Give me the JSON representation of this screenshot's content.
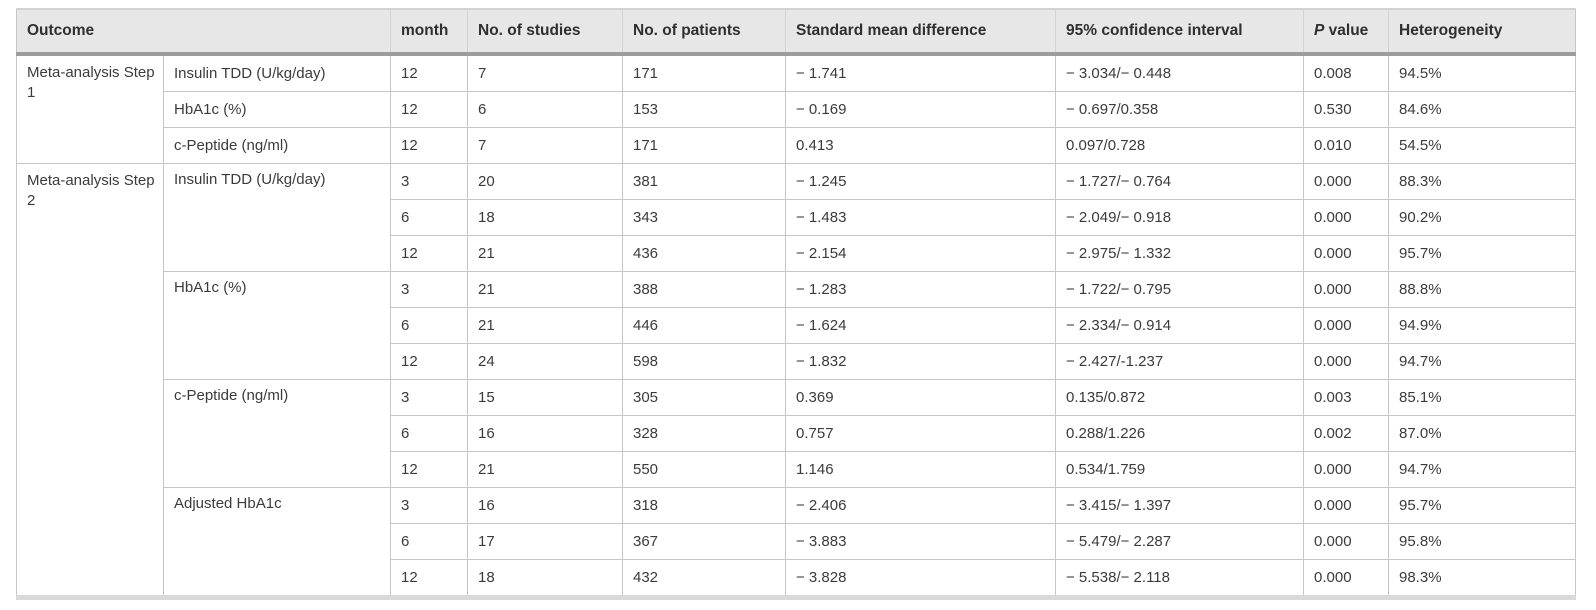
{
  "table": {
    "header": {
      "outcome": "Outcome",
      "month": "month",
      "studies": "No. of studies",
      "patients": "No. of patients",
      "smd": "Standard mean difference",
      "ci": "95% confidence interval",
      "p_italic": "P",
      "p_rest": " value",
      "het": "Heterogeneity"
    },
    "groups": {
      "step1": "Meta-analysis Step 1",
      "step2": "Meta-analysis Step 2"
    },
    "measures": {
      "s1_insulin": "Insulin TDD (U/kg/day)",
      "s1_hba1c": "HbA1c (%)",
      "s1_cpeptide": "c-Peptide (ng/ml)",
      "s2_insulin": "Insulin TDD (U/kg/day)",
      "s2_hba1c": "HbA1c (%)",
      "s2_cpeptide": "c-Peptide (ng/ml)",
      "s2_adjusted": "Adjusted HbA1c"
    },
    "rows": [
      {
        "month": "12",
        "studies": "7",
        "patients": "171",
        "smd": "− 1.741",
        "ci": "− 3.034/− 0.448",
        "p": "0.008",
        "het": "94.5%"
      },
      {
        "month": "12",
        "studies": "6",
        "patients": "153",
        "smd": "− 0.169",
        "ci": "− 0.697/0.358",
        "p": "0.530",
        "het": "84.6%"
      },
      {
        "month": "12",
        "studies": "7",
        "patients": "171",
        "smd": "0.413",
        "ci": "0.097/0.728",
        "p": "0.010",
        "het": "54.5%"
      },
      {
        "month": "3",
        "studies": "20",
        "patients": "381",
        "smd": "− 1.245",
        "ci": "− 1.727/− 0.764",
        "p": "0.000",
        "het": "88.3%"
      },
      {
        "month": "6",
        "studies": "18",
        "patients": "343",
        "smd": "− 1.483",
        "ci": "− 2.049/− 0.918",
        "p": "0.000",
        "het": "90.2%"
      },
      {
        "month": "12",
        "studies": "21",
        "patients": "436",
        "smd": "− 2.154",
        "ci": "− 2.975/− 1.332",
        "p": "0.000",
        "het": "95.7%"
      },
      {
        "month": "3",
        "studies": "21",
        "patients": "388",
        "smd": "− 1.283",
        "ci": "− 1.722/− 0.795",
        "p": "0.000",
        "het": "88.8%"
      },
      {
        "month": "6",
        "studies": "21",
        "patients": "446",
        "smd": "− 1.624",
        "ci": "− 2.334/− 0.914",
        "p": "0.000",
        "het": "94.9%"
      },
      {
        "month": "12",
        "studies": "24",
        "patients": "598",
        "smd": "− 1.832",
        "ci": "− 2.427/-1.237",
        "p": "0.000",
        "het": "94.7%"
      },
      {
        "month": "3",
        "studies": "15",
        "patients": "305",
        "smd": "0.369",
        "ci": "0.135/0.872",
        "p": "0.003",
        "het": "85.1%"
      },
      {
        "month": "6",
        "studies": "16",
        "patients": "328",
        "smd": "0.757",
        "ci": "0.288/1.226",
        "p": "0.002",
        "het": "87.0%"
      },
      {
        "month": "12",
        "studies": "21",
        "patients": "550",
        "smd": "1.146",
        "ci": "0.534/1.759",
        "p": "0.000",
        "het": "94.7%"
      },
      {
        "month": "3",
        "studies": "16",
        "patients": "318",
        "smd": "− 2.406",
        "ci": "− 3.415/− 1.397",
        "p": "0.000",
        "het": "95.7%"
      },
      {
        "month": "6",
        "studies": "17",
        "patients": "367",
        "smd": "− 3.883",
        "ci": "− 5.479/− 2.287",
        "p": "0.000",
        "het": "95.8%"
      },
      {
        "month": "12",
        "studies": "18",
        "patients": "432",
        "smd": "− 3.828",
        "ci": "− 5.538/− 2.118",
        "p": "0.000",
        "het": "98.3%"
      }
    ],
    "colors": {
      "header_bg": "#e7e7e7",
      "header_rule": "#9c9c9c",
      "grid_line": "#c6c6c6",
      "bottom_rule": "#d9d9d9",
      "body_text": "#3b3b3b",
      "header_text": "#2f2f2f"
    }
  }
}
